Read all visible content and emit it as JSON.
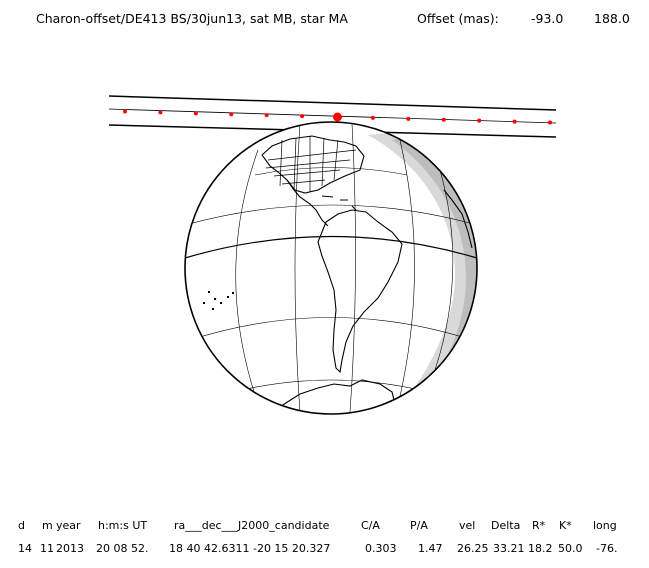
{
  "header": {
    "title": "Charon-offset/DE413 BS/30jun13, sat MB, star MA",
    "offset_label": "Offset (mas):",
    "offset_x": "-93.0",
    "offset_y": "188.0"
  },
  "table": {
    "columns": [
      "d",
      "m",
      "year",
      "h:m:s UT",
      "ra___dec___J2000_candidate",
      "C/A",
      "P/A",
      "vel",
      "Delta",
      "R*",
      "K*",
      "long"
    ],
    "values": [
      "14",
      "11",
      "2013",
      "20 08 52.",
      "18 40 42.6311 -20 15 20.327",
      "0.303",
      "1.47",
      "26.25",
      "33.21",
      "18.2",
      "50.0",
      "-76."
    ]
  },
  "colors": {
    "shadow_track": "#000000",
    "path_markers": "#ff0000",
    "night_side": "#bdbdbd",
    "twilight": "#d9d9d9",
    "globe": "#ffffff"
  },
  "path_markers": {
    "count": 13,
    "highlighted_index": 6
  }
}
